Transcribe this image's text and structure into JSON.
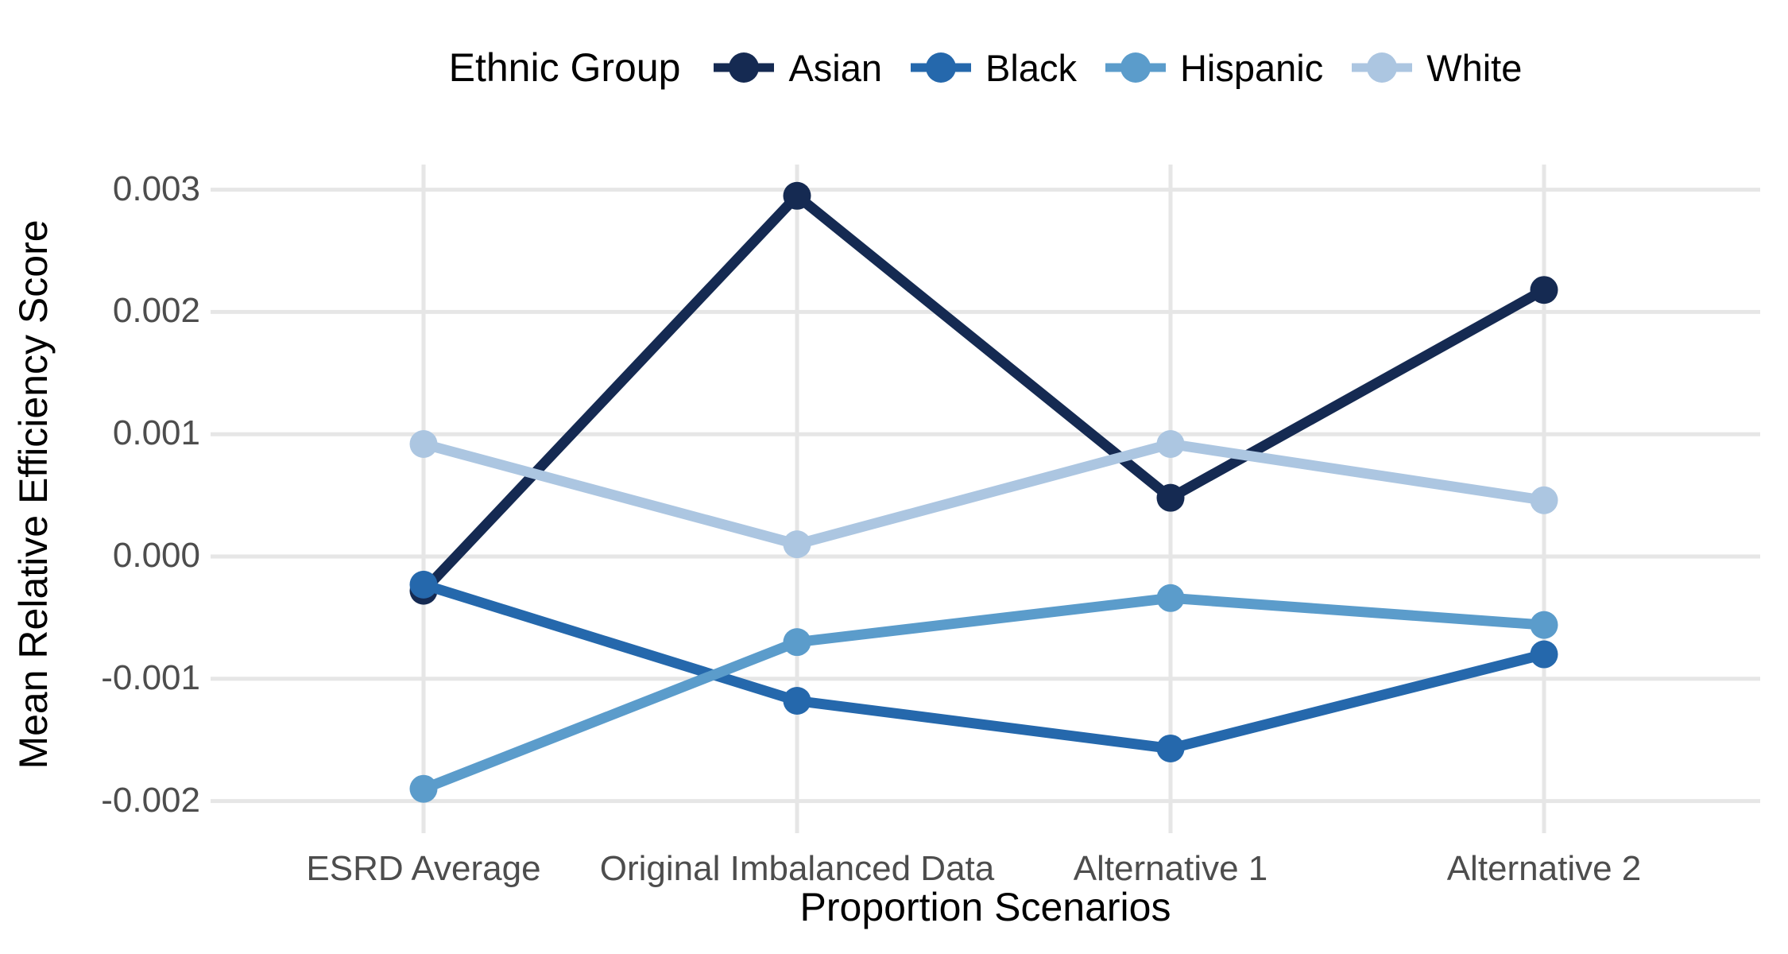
{
  "chart_data": {
    "type": "line",
    "legend_title": "Ethnic Group",
    "legend_position": "top",
    "categories": [
      "ESRD Average",
      "Original Imbalanced Data",
      "Alternative 1",
      "Alternative 2"
    ],
    "series": [
      {
        "name": "Asian",
        "color": "#152a52",
        "values": [
          -0.00028,
          0.00295,
          0.00048,
          0.00218
        ]
      },
      {
        "name": "Black",
        "color": "#2568ac",
        "values": [
          -0.00023,
          -0.00118,
          -0.00157,
          -0.0008
        ]
      },
      {
        "name": "Hispanic",
        "color": "#5b9ccb",
        "values": [
          -0.0019,
          -0.0007,
          -0.00034,
          -0.00056
        ]
      },
      {
        "name": "White",
        "color": "#acc6e1",
        "values": [
          0.00092,
          0.0001,
          0.00092,
          0.00046
        ]
      }
    ],
    "xlabel": "Proportion Scenarios",
    "ylabel": "Mean Relative Efficiency Score",
    "y_ticks": [
      "0.003",
      "0.002",
      "0.001",
      "0.000",
      "-0.001",
      "-0.002"
    ],
    "y_tick_values": [
      0.003,
      0.002,
      0.001,
      0.0,
      -0.001,
      -0.002
    ],
    "ylim": [
      -0.00227,
      0.0032
    ],
    "grid": true,
    "styles": {
      "grid_color": "#e6e6e6",
      "tick_label_color": "#4d4d4d",
      "axis_title_color": "#000000",
      "background": "#ffffff"
    }
  }
}
